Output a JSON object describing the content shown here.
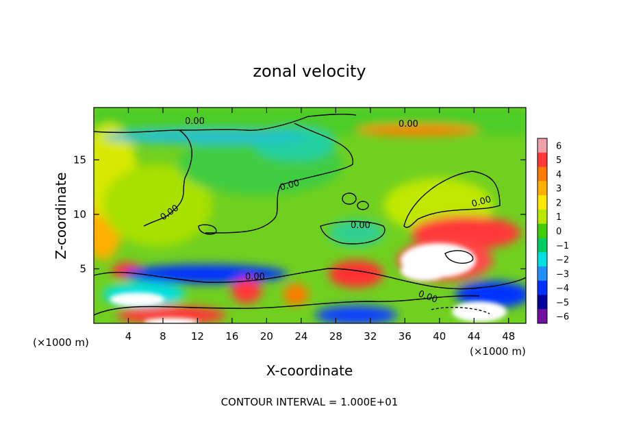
{
  "chart_data": {
    "type": "heatmap",
    "title": "zonal velocity",
    "xlabel": "X-coordinate",
    "ylabel": "Z-coordinate",
    "x_unit": "(×1000 m)",
    "z_unit": "(×1000 m)",
    "xlim": [
      0,
      50
    ],
    "ylim": [
      0,
      19.8
    ],
    "x_ticks": [
      4,
      8,
      12,
      16,
      20,
      24,
      28,
      32,
      36,
      40,
      44,
      48
    ],
    "y_ticks": [
      5,
      10,
      15
    ],
    "colorbar_ticks": [
      6,
      5,
      4,
      3,
      2,
      1,
      0,
      -1,
      -2,
      -3,
      -4,
      -5,
      -6
    ],
    "colorbar_colors": [
      "#f0a0a8",
      "#ff3838",
      "#ff7a00",
      "#ffb000",
      "#ffe800",
      "#b8e800",
      "#40cc00",
      "#00cc60",
      "#00e0e0",
      "#2090ff",
      "#0030ff",
      "#0000a0",
      "#7010a0"
    ],
    "contour_labels": [
      "0.00",
      "0.00",
      "0.00",
      "0.00",
      "0.00",
      "0.00",
      "0.00",
      "0.00"
    ],
    "footer": "CONTOUR INTERVAL = 1.000E+01"
  }
}
